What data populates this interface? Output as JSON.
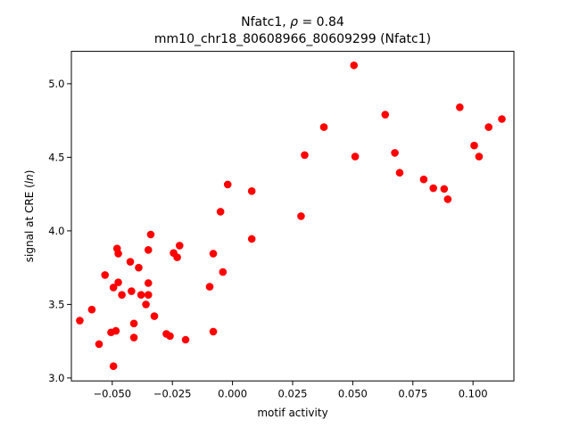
{
  "chart_data": {
    "type": "scatter",
    "title_line1_text": "Nfatc1, ",
    "title_line1_rho": "ρ",
    "title_line1_value": " = 0.84",
    "title_line2": "mm10_chr18_80608966_80609299 (Nfatc1)",
    "xlabel": "motif activity",
    "ylabel_prefix": "signal at CRE (",
    "ylabel_italic": "ln",
    "ylabel_suffix": ")",
    "xlim": [
      -0.067,
      0.117
    ],
    "ylim": [
      2.98,
      5.22
    ],
    "xticks": [
      -0.05,
      -0.025,
      0.0,
      0.025,
      0.05,
      0.075,
      0.1
    ],
    "xtick_labels": [
      "−0.050",
      "−0.025",
      "0.000",
      "0.025",
      "0.050",
      "0.075",
      "0.100"
    ],
    "yticks": [
      3.0,
      3.5,
      4.0,
      4.5,
      5.0
    ],
    "ytick_labels": [
      "3.0",
      "3.5",
      "4.0",
      "4.5",
      "5.0"
    ],
    "grid": false,
    "marker_color": "#ff0000",
    "points": [
      {
        "x": -0.0635,
        "y": 3.39
      },
      {
        "x": -0.0585,
        "y": 3.465
      },
      {
        "x": -0.0555,
        "y": 3.23
      },
      {
        "x": -0.053,
        "y": 3.7
      },
      {
        "x": -0.0505,
        "y": 3.31
      },
      {
        "x": -0.0495,
        "y": 3.615
      },
      {
        "x": -0.0495,
        "y": 3.08
      },
      {
        "x": -0.0485,
        "y": 3.32
      },
      {
        "x": -0.048,
        "y": 3.88
      },
      {
        "x": -0.0475,
        "y": 3.65
      },
      {
        "x": -0.0475,
        "y": 3.845
      },
      {
        "x": -0.046,
        "y": 3.565
      },
      {
        "x": -0.0425,
        "y": 3.79
      },
      {
        "x": -0.042,
        "y": 3.59
      },
      {
        "x": -0.041,
        "y": 3.37
      },
      {
        "x": -0.041,
        "y": 3.275
      },
      {
        "x": -0.039,
        "y": 3.75
      },
      {
        "x": -0.038,
        "y": 3.565
      },
      {
        "x": -0.036,
        "y": 3.5
      },
      {
        "x": -0.035,
        "y": 3.87
      },
      {
        "x": -0.035,
        "y": 3.645
      },
      {
        "x": -0.035,
        "y": 3.565
      },
      {
        "x": -0.034,
        "y": 3.975
      },
      {
        "x": -0.0325,
        "y": 3.42
      },
      {
        "x": -0.0275,
        "y": 3.3
      },
      {
        "x": -0.026,
        "y": 3.285
      },
      {
        "x": -0.0245,
        "y": 3.85
      },
      {
        "x": -0.023,
        "y": 3.82
      },
      {
        "x": -0.022,
        "y": 3.9
      },
      {
        "x": -0.0195,
        "y": 3.26
      },
      {
        "x": -0.0095,
        "y": 3.62
      },
      {
        "x": -0.008,
        "y": 3.845
      },
      {
        "x": -0.008,
        "y": 3.315
      },
      {
        "x": -0.005,
        "y": 4.13
      },
      {
        "x": -0.004,
        "y": 3.72
      },
      {
        "x": -0.002,
        "y": 4.315
      },
      {
        "x": 0.008,
        "y": 4.27
      },
      {
        "x": 0.008,
        "y": 3.945
      },
      {
        "x": 0.0285,
        "y": 4.1
      },
      {
        "x": 0.03,
        "y": 4.515
      },
      {
        "x": 0.038,
        "y": 4.705
      },
      {
        "x": 0.0505,
        "y": 5.125
      },
      {
        "x": 0.051,
        "y": 4.505
      },
      {
        "x": 0.0635,
        "y": 4.79
      },
      {
        "x": 0.0675,
        "y": 4.53
      },
      {
        "x": 0.0695,
        "y": 4.395
      },
      {
        "x": 0.0795,
        "y": 4.35
      },
      {
        "x": 0.0835,
        "y": 4.29
      },
      {
        "x": 0.088,
        "y": 4.285
      },
      {
        "x": 0.0895,
        "y": 4.215
      },
      {
        "x": 0.0945,
        "y": 4.84
      },
      {
        "x": 0.1005,
        "y": 4.58
      },
      {
        "x": 0.1025,
        "y": 4.505
      },
      {
        "x": 0.1065,
        "y": 4.705
      },
      {
        "x": 0.112,
        "y": 4.76
      }
    ]
  }
}
